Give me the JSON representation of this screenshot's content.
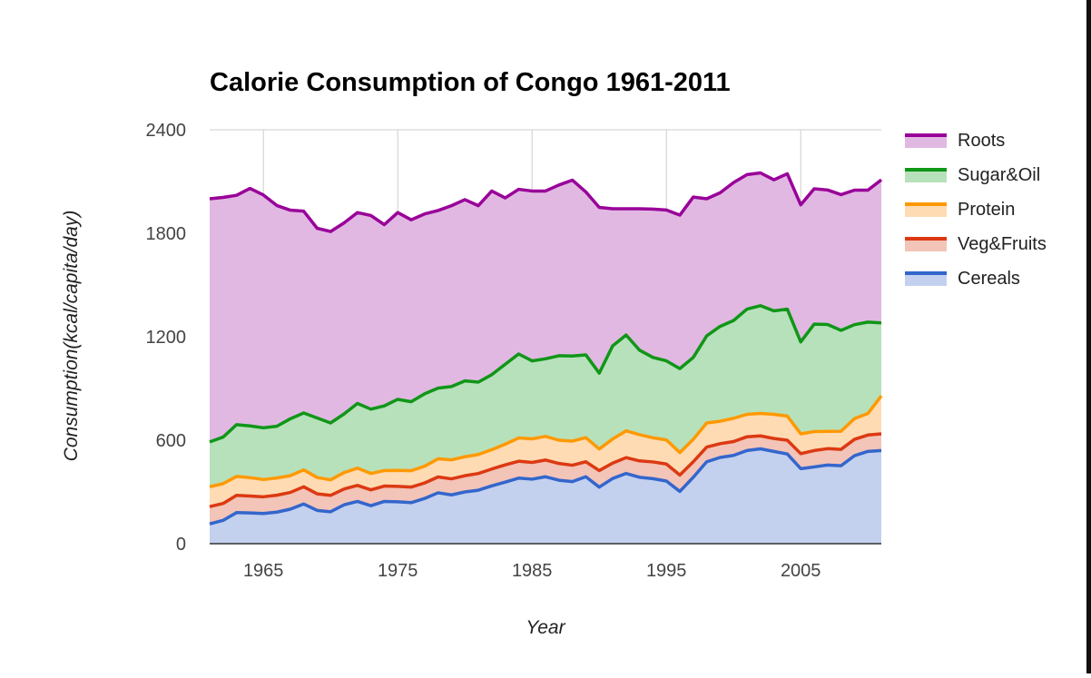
{
  "chart_data": {
    "type": "area",
    "stacked": true,
    "title": "Calorie Consumption of Congo 1961-2011",
    "xlabel": "Year",
    "ylabel": "Consumption(kcal/capita/day)",
    "xlim": [
      1961,
      2011
    ],
    "ylim": [
      0,
      2400
    ],
    "x_ticks": [
      "1965",
      "1975",
      "1985",
      "1995",
      "2005"
    ],
    "x_tick_values": [
      1965,
      1975,
      1985,
      1995,
      2005
    ],
    "y_ticks": [
      "0",
      "600",
      "1200",
      "1800",
      "2400"
    ],
    "y_tick_values": [
      0,
      600,
      1200,
      1800,
      2400
    ],
    "grid": true,
    "legend_position": "right",
    "x": [
      1961,
      1962,
      1963,
      1964,
      1965,
      1966,
      1967,
      1968,
      1969,
      1970,
      1971,
      1972,
      1973,
      1974,
      1975,
      1976,
      1977,
      1978,
      1979,
      1980,
      1981,
      1982,
      1983,
      1984,
      1985,
      1986,
      1987,
      1988,
      1989,
      1990,
      1991,
      1992,
      1993,
      1994,
      1995,
      1996,
      1997,
      1998,
      1999,
      2000,
      2001,
      2002,
      2003,
      2004,
      2005,
      2006,
      2007,
      2008,
      2009,
      2010,
      2011
    ],
    "series": [
      {
        "name": "Cereals",
        "line_color": "#3366cc",
        "fill_color": "#c3d1ef",
        "values": [
          115,
          135,
          180,
          178,
          175,
          183,
          200,
          230,
          193,
          185,
          225,
          245,
          220,
          245,
          243,
          238,
          262,
          295,
          283,
          300,
          310,
          335,
          357,
          380,
          374,
          388,
          368,
          360,
          388,
          328,
          378,
          407,
          385,
          377,
          363,
          303,
          385,
          475,
          500,
          512,
          540,
          550,
          535,
          520,
          435,
          445,
          456,
          452,
          510,
          535,
          540
        ]
      },
      {
        "name": "Veg&Fruits",
        "line_color": "#dc3912",
        "fill_color": "#f3c4b8",
        "values": [
          100,
          98,
          100,
          98,
          97,
          98,
          97,
          100,
          96,
          95,
          92,
          93,
          92,
          89,
          89,
          90,
          90,
          92,
          93,
          94,
          97,
          98,
          100,
          98,
          97,
          97,
          97,
          95,
          87,
          96,
          89,
          92,
          95,
          97,
          99,
          95,
          90,
          85,
          80,
          80,
          80,
          75,
          75,
          80,
          87,
          95,
          95,
          95,
          95,
          95,
          97
        ]
      },
      {
        "name": "Protein",
        "line_color": "#ff9900",
        "fill_color": "#ffdbb3",
        "values": [
          115,
          115,
          110,
          107,
          100,
          100,
          97,
          98,
          95,
          90,
          95,
          100,
          95,
          90,
          93,
          95,
          97,
          105,
          110,
          110,
          110,
          112,
          120,
          135,
          137,
          137,
          135,
          140,
          140,
          125,
          140,
          155,
          152,
          140,
          140,
          130,
          130,
          140,
          130,
          135,
          130,
          130,
          140,
          140,
          115,
          110,
          100,
          105,
          120,
          125,
          220
        ]
      },
      {
        "name": "Sugar&Oil",
        "line_color": "#109618",
        "fill_color": "#b7e1bb",
        "values": [
          260,
          270,
          300,
          300,
          300,
          300,
          330,
          330,
          345,
          330,
          340,
          375,
          373,
          375,
          412,
          400,
          420,
          410,
          425,
          440,
          420,
          435,
          463,
          487,
          452,
          450,
          490,
          493,
          480,
          440,
          540,
          556,
          490,
          466,
          458,
          487,
          475,
          505,
          550,
          567,
          610,
          625,
          600,
          620,
          533,
          623,
          620,
          585,
          545,
          530,
          423
        ]
      },
      {
        "name": "Roots",
        "line_color": "#990099",
        "fill_color": "#e1b8e2",
        "values": [
          1410,
          1390,
          1330,
          1377,
          1350,
          1280,
          1210,
          1170,
          1100,
          1110,
          1108,
          1107,
          1123,
          1051,
          1083,
          1055,
          1043,
          1030,
          1049,
          1051,
          1023,
          1065,
          965,
          955,
          985,
          973,
          990,
          1020,
          945,
          961,
          795,
          732,
          820,
          860,
          875,
          890,
          930,
          795,
          775,
          800,
          780,
          770,
          760,
          785,
          795,
          785,
          780,
          787,
          780,
          765,
          830
        ]
      }
    ]
  }
}
